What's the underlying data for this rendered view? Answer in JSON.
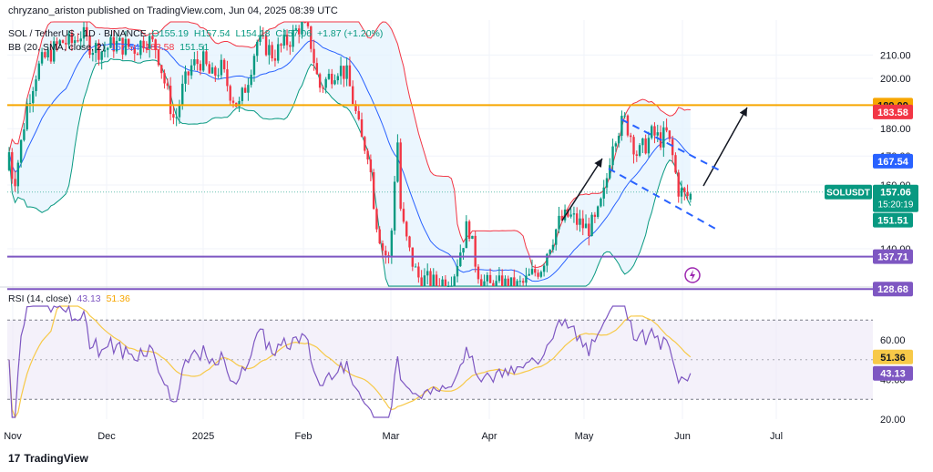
{
  "attribution": "chryzano_ariston published on TradingView.com, Jun 04, 2025 08:39 UTC",
  "legend": {
    "symbol": "SOL / TetherUS · 1D · BINANCE",
    "o": "O155.19",
    "h": "H157.54",
    "l": "L154.18",
    "c": "C157.06",
    "change": "+1.87 (+1.20%)",
    "bb_label": "BB (20, SMA, close, 2)",
    "bb_basis": "167.54",
    "bb_upper": "183.58",
    "bb_lower": "151.51",
    "rsi_label": "RSI (14, close)",
    "rsi_value": "43.13",
    "rsi_ma": "51.36"
  },
  "brand": "TradingView",
  "colors": {
    "up": "#089981",
    "down": "#f23645",
    "bb_basis": "#2962ff",
    "bb_upper": "#f23645",
    "bb_lower": "#089981",
    "bb_fill": "#e3f2fd",
    "resistance": "#f7a600",
    "support": "#7e57c2",
    "rsi_line": "#7e57c2",
    "rsi_ma": "#f7c948",
    "rsi_band": "#ede7f6"
  },
  "chart_data": [
    {
      "type": "candlestick",
      "title": "SOL / TetherUS · 1D · BINANCE",
      "x_ticks": [
        "Nov",
        "Dec",
        "2025",
        "Feb",
        "Mar",
        "Apr",
        "May",
        "Jun",
        "Jul"
      ],
      "y_ticks": [
        "210.00",
        "200.00",
        "180.00",
        "170.00",
        "160.00",
        "140.00"
      ],
      "y_scale": "log",
      "ylim": [
        128,
        222
      ],
      "horizontal_levels": [
        {
          "value": 189.09,
          "label": "189.09",
          "kind": "resistance"
        },
        {
          "value": 137.71,
          "label": "137.71",
          "kind": "support"
        },
        {
          "value": 128.68,
          "label": "128.68",
          "kind": "support"
        }
      ],
      "price_labels": [
        {
          "value": 183.58,
          "label": "183.58",
          "kind": "bb_upper"
        },
        {
          "value": 167.54,
          "label": "167.54",
          "kind": "bb_basis"
        },
        {
          "value": 157.06,
          "label": "157.06",
          "kind": "last",
          "tag": "SOLUSDT",
          "countdown": "15:20:19"
        },
        {
          "value": 151.51,
          "label": "151.51",
          "kind": "bb_lower"
        }
      ],
      "series": [
        {
          "name": "BB Basis",
          "value": 167.54
        },
        {
          "name": "BB Upper",
          "value": 183.58
        },
        {
          "name": "BB Lower",
          "value": 151.51
        }
      ]
    },
    {
      "type": "line",
      "title": "RSI (14, close)",
      "y_ticks": [
        "60.00",
        "40.00",
        "20.00"
      ],
      "ylim": [
        16,
        76
      ],
      "band": [
        30,
        70
      ],
      "series": [
        {
          "name": "RSI",
          "last": 43.13,
          "label": "43.13"
        },
        {
          "name": "RSI MA",
          "last": 51.36,
          "label": "51.36"
        }
      ]
    }
  ]
}
